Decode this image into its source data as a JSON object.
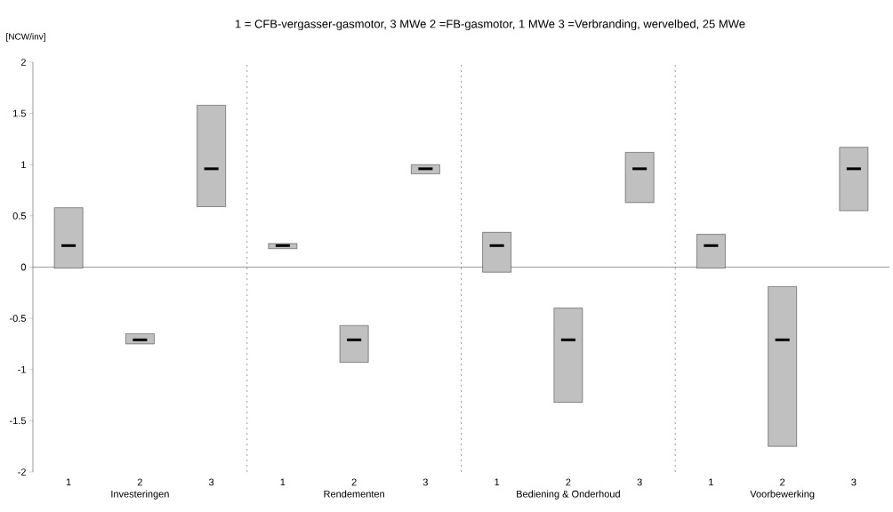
{
  "chart_data": {
    "type": "box",
    "title": "1 = CFB-vergasser-gasmotor, 3 MWe  2 =FB-gasmotor, 1 MWe    3 =Verbranding, wervelbed, 25 MWe",
    "categories": [
      "1",
      "2",
      "3",
      "1",
      "2",
      "3",
      "1",
      "2",
      "3",
      "1",
      "2",
      "3"
    ],
    "color": "#c0c0c0",
    "boxes": [
      {
        "low": -0.01,
        "q1": -0.01,
        "median": 0.21,
        "q3": 0.58,
        "high": 0.58
      },
      {
        "low": -0.75,
        "q1": -0.75,
        "median": -0.71,
        "q3": -0.65,
        "high": -0.65
      },
      {
        "low": 0.59,
        "q1": 0.59,
        "median": 0.96,
        "q3": 1.58,
        "high": 1.58
      },
      {
        "low": 0.18,
        "q1": 0.18,
        "median": 0.21,
        "q3": 0.23,
        "high": 0.23
      },
      {
        "low": -0.93,
        "q1": -0.93,
        "median": -0.71,
        "q3": -0.57,
        "high": -0.57
      },
      {
        "low": 0.91,
        "q1": 0.91,
        "median": 0.96,
        "q3": 1.0,
        "high": 1.0
      },
      {
        "low": -0.05,
        "q1": -0.05,
        "median": 0.21,
        "q3": 0.34,
        "high": 0.34
      },
      {
        "low": -1.32,
        "q1": -1.32,
        "median": -0.71,
        "q3": -0.4,
        "high": -0.4
      },
      {
        "low": 0.63,
        "q1": 0.63,
        "median": 0.96,
        "q3": 1.12,
        "high": 1.12
      },
      {
        "low": -0.01,
        "q1": -0.01,
        "median": 0.21,
        "q3": 0.32,
        "high": 0.32
      },
      {
        "low": -1.75,
        "q1": -1.75,
        "median": -0.71,
        "q3": -0.19,
        "high": -0.19
      },
      {
        "low": 0.55,
        "q1": 0.55,
        "median": 0.96,
        "q3": 1.17,
        "high": 1.17
      }
    ],
    "ylim": [
      -2,
      2
    ],
    "yticks": [
      -2,
      -1.5,
      -1,
      -0.5,
      0,
      0.5,
      1,
      1.5,
      2
    ],
    "annotations": [
      "[NCW/inv]",
      "Investeringen",
      "Rendementen",
      "Bediening & Onderhoud",
      "Voorbewerking"
    ]
  }
}
